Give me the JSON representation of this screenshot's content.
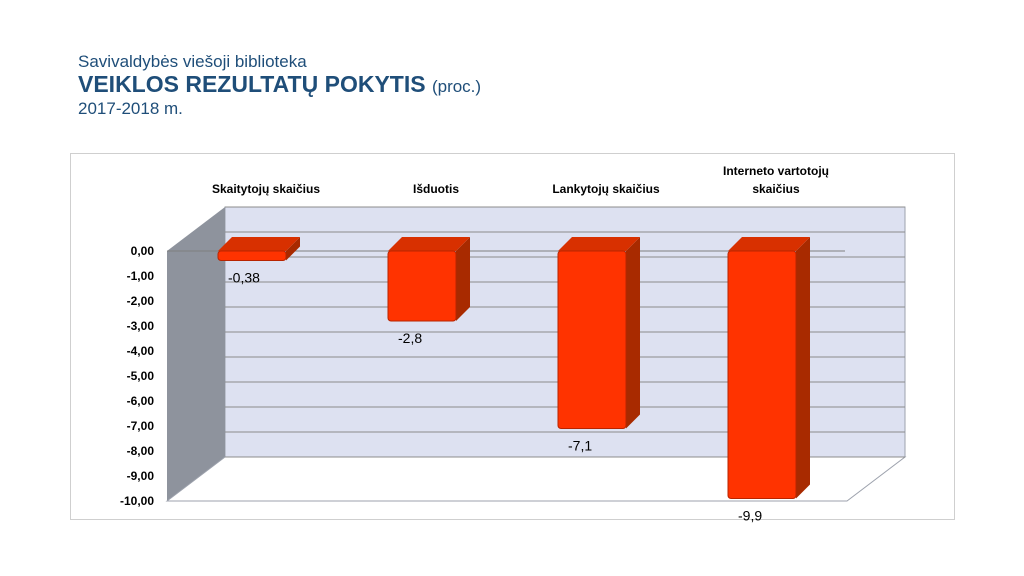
{
  "header": {
    "subtitle": "Savivaldybės viešoji biblioteka",
    "title": "VEIKLOS REZULTATŲ POKYTIS",
    "unit": "(proc.)",
    "period": "2017-2018 m."
  },
  "chart_data": {
    "type": "bar",
    "categories": [
      [
        "Skaitytojų skaičius"
      ],
      [
        "Išduotis"
      ],
      [
        "Lankytojų skaičius"
      ],
      [
        "Interneto vartotojų",
        "skaičius"
      ]
    ],
    "values": [
      -0.38,
      -2.8,
      -7.1,
      -9.9
    ],
    "data_labels": [
      "-0,38",
      "-2,8",
      "-7,1",
      "-9,9"
    ],
    "y_ticks": [
      "0,00",
      "-1,00",
      "-2,00",
      "-3,00",
      "-4,00",
      "-5,00",
      "-6,00",
      "-7,00",
      "-8,00",
      "-9,00",
      "-10,00"
    ],
    "ylim": [
      -10,
      0
    ],
    "category_labels_position": "top",
    "grid": true,
    "style": "3d-column",
    "colors": {
      "bar_front": "#ff3300",
      "bar_side": "#a82a00",
      "bar_top": "#d83000",
      "wall": "#dde1f1",
      "side_wall": "#8e939d",
      "grid": "#8c8c8c"
    }
  }
}
